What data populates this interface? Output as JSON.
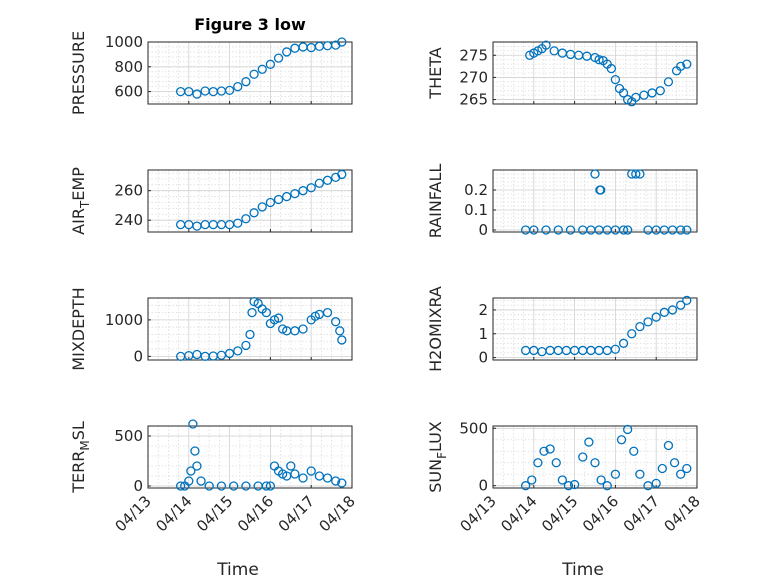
{
  "chart_data": [
    {
      "type": "scatter",
      "title": "Figure 3 low",
      "ylabel": "PRESSURE",
      "ylim": [
        500,
        1000
      ],
      "yticks": [
        600,
        800,
        1000
      ],
      "xlim": [
        "04/13",
        "04/18"
      ],
      "series": [
        {
          "x": [
            13.8,
            14.0,
            14.2,
            14.4,
            14.6,
            14.8,
            15.0,
            15.2,
            15.4,
            15.6,
            15.8,
            16.0,
            16.2,
            16.4,
            16.6,
            16.8,
            17.0,
            17.2,
            17.4,
            17.6,
            17.75
          ],
          "y": [
            600,
            600,
            580,
            605,
            600,
            605,
            610,
            640,
            680,
            740,
            780,
            820,
            870,
            920,
            950,
            960,
            955,
            965,
            970,
            975,
            1000
          ]
        }
      ]
    },
    {
      "type": "scatter",
      "ylabel": "THETA",
      "ylim": [
        264,
        278
      ],
      "yticks": [
        265,
        270,
        275
      ],
      "xlim": [
        "04/13",
        "04/18"
      ],
      "series": [
        {
          "x": [
            13.9,
            14.0,
            14.1,
            14.2,
            14.3,
            14.5,
            14.7,
            14.9,
            15.1,
            15.3,
            15.5,
            15.6,
            15.7,
            15.8,
            15.9,
            16.0,
            16.1,
            16.2,
            16.3,
            16.4,
            16.5,
            16.7,
            16.9,
            17.1,
            17.3,
            17.5,
            17.6,
            17.75
          ],
          "y": [
            275,
            275.5,
            276,
            276.5,
            277.3,
            276,
            275.5,
            275.2,
            275,
            274.8,
            274.5,
            274,
            273.8,
            273,
            272,
            269.5,
            267.5,
            266.5,
            265,
            264.5,
            265.5,
            266,
            266.5,
            267,
            269,
            271.5,
            272.5,
            273
          ]
        }
      ]
    },
    {
      "type": "scatter",
      "ylabel": "AIR_TEMP",
      "ylim": [
        232,
        274
      ],
      "yticks": [
        240,
        260
      ],
      "xlim": [
        "04/13",
        "04/18"
      ],
      "series": [
        {
          "x": [
            13.8,
            14.0,
            14.2,
            14.4,
            14.6,
            14.8,
            15.0,
            15.2,
            15.4,
            15.6,
            15.8,
            16.0,
            16.2,
            16.4,
            16.6,
            16.8,
            17.0,
            17.2,
            17.4,
            17.6,
            17.75
          ],
          "y": [
            237,
            237,
            236,
            237,
            237,
            237,
            237,
            238,
            241,
            245,
            249,
            252,
            254,
            256,
            258,
            260,
            262,
            265,
            267,
            269,
            271
          ]
        }
      ]
    },
    {
      "type": "scatter",
      "ylabel": "RAINFALL",
      "ylim": [
        -0.01,
        0.3
      ],
      "yticks": [
        0,
        0.1,
        0.2
      ],
      "xlim": [
        "04/13",
        "04/18"
      ],
      "series": [
        {
          "x": [
            13.8,
            14.0,
            14.3,
            14.6,
            14.9,
            15.2,
            15.4,
            15.5,
            15.6,
            15.62,
            15.64,
            15.8,
            16.0,
            16.2,
            16.3,
            16.4,
            16.5,
            16.6,
            16.8,
            17.0,
            17.2,
            17.4,
            17.6,
            17.75
          ],
          "y": [
            0,
            0,
            0,
            0,
            0,
            0,
            0,
            0.28,
            0,
            0.2,
            0.2,
            0,
            0,
            0,
            0,
            0.28,
            0.28,
            0.28,
            0,
            0,
            0,
            0,
            0,
            0
          ]
        }
      ]
    },
    {
      "type": "scatter",
      "ylabel": "MIXDEPTH",
      "ylim": [
        -100,
        1600
      ],
      "yticks": [
        0,
        1000
      ],
      "xlim": [
        "04/13",
        "04/18"
      ],
      "series": [
        {
          "x": [
            13.8,
            14.0,
            14.2,
            14.4,
            14.6,
            14.8,
            15.0,
            15.2,
            15.4,
            15.5,
            15.55,
            15.6,
            15.7,
            15.8,
            15.9,
            16.0,
            16.1,
            16.2,
            16.3,
            16.4,
            16.6,
            16.8,
            17.0,
            17.1,
            17.2,
            17.4,
            17.6,
            17.7,
            17.75
          ],
          "y": [
            0,
            20,
            50,
            0,
            10,
            30,
            80,
            150,
            300,
            600,
            1200,
            1500,
            1450,
            1300,
            1200,
            900,
            1000,
            1050,
            750,
            700,
            700,
            750,
            1000,
            1100,
            1150,
            1200,
            950,
            700,
            450
          ]
        }
      ]
    },
    {
      "type": "scatter",
      "ylabel": "H2OMIXRA",
      "ylim": [
        -0.1,
        2.5
      ],
      "yticks": [
        0,
        1,
        2
      ],
      "xlim": [
        "04/13",
        "04/18"
      ],
      "series": [
        {
          "x": [
            13.8,
            14.0,
            14.2,
            14.4,
            14.6,
            14.8,
            15.0,
            15.2,
            15.4,
            15.6,
            15.8,
            16.0,
            16.2,
            16.4,
            16.6,
            16.8,
            17.0,
            17.2,
            17.4,
            17.6,
            17.75
          ],
          "y": [
            0.3,
            0.3,
            0.25,
            0.3,
            0.3,
            0.3,
            0.3,
            0.3,
            0.3,
            0.3,
            0.3,
            0.35,
            0.6,
            1.0,
            1.3,
            1.5,
            1.7,
            1.9,
            2.0,
            2.2,
            2.4
          ]
        }
      ]
    },
    {
      "type": "scatter",
      "ylabel": "TERR_MSL",
      "ylim": [
        -20,
        600
      ],
      "yticks": [
        0,
        500
      ],
      "xlim": [
        "04/13",
        "04/18"
      ],
      "series": [
        {
          "x": [
            13.8,
            13.9,
            14.0,
            14.05,
            14.1,
            14.15,
            14.2,
            14.3,
            14.5,
            14.8,
            15.1,
            15.4,
            15.7,
            15.9,
            16.0,
            16.1,
            16.2,
            16.3,
            16.4,
            16.5,
            16.6,
            16.8,
            17.0,
            17.2,
            17.4,
            17.6,
            17.75
          ],
          "y": [
            0,
            0,
            50,
            150,
            620,
            350,
            200,
            50,
            0,
            0,
            0,
            0,
            0,
            0,
            0,
            200,
            150,
            120,
            100,
            200,
            120,
            80,
            150,
            100,
            80,
            50,
            30
          ]
        }
      ]
    },
    {
      "type": "scatter",
      "ylabel": "SUN_FLUX",
      "ylim": [
        -20,
        520
      ],
      "yticks": [
        0,
        500
      ],
      "xlim": [
        "04/13",
        "04/18"
      ],
      "series": [
        {
          "x": [
            13.8,
            13.95,
            14.1,
            14.25,
            14.4,
            14.55,
            14.7,
            14.85,
            15.0,
            15.2,
            15.35,
            15.5,
            15.65,
            15.8,
            16.0,
            16.15,
            16.3,
            16.45,
            16.6,
            16.8,
            17.0,
            17.15,
            17.3,
            17.45,
            17.6,
            17.75
          ],
          "y": [
            0,
            50,
            200,
            300,
            320,
            200,
            50,
            0,
            10,
            250,
            380,
            200,
            50,
            0,
            100,
            400,
            490,
            300,
            100,
            0,
            20,
            150,
            350,
            200,
            100,
            150
          ]
        }
      ]
    }
  ],
  "xaxis": {
    "ticks": [
      "04/13",
      "04/14",
      "04/15",
      "04/16",
      "04/17",
      "04/18"
    ],
    "label": "Time"
  },
  "colors": {
    "marker": "#0072bd",
    "axis": "#262626"
  }
}
